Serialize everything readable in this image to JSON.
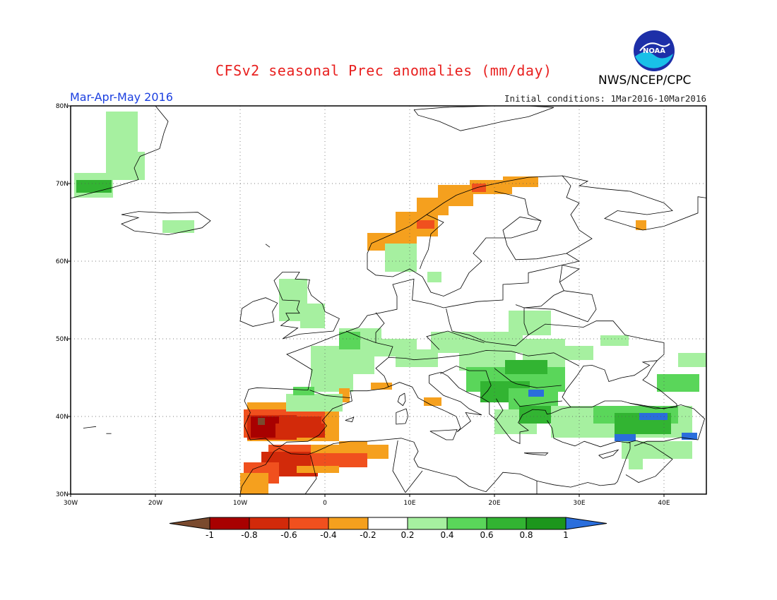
{
  "title": "CFSv2 seasonal Prec anomalies (mm/day)",
  "period": "Mar-Apr-May 2016",
  "initial_conditions": "Initial conditions: 1Mar2016-10Mar2016",
  "agency": "NWS/NCEP/CPC",
  "logo_text": "NOAA",
  "map": {
    "lon_range": [
      -30,
      45
    ],
    "lat_range": [
      30,
      80
    ],
    "lon_ticks": [
      "30W",
      "20W",
      "10W",
      "0",
      "10E",
      "20E",
      "30E",
      "40E"
    ],
    "lat_ticks": [
      "30N",
      "40N",
      "50N",
      "60N",
      "70N",
      "80N"
    ]
  },
  "colorbar": {
    "labels": [
      "-1",
      "-0.8",
      "-0.6",
      "-0.4",
      "-0.2",
      "0.2",
      "0.4",
      "0.6",
      "0.8",
      "1"
    ],
    "colors": [
      "#7a4a2e",
      "#a80000",
      "#d22a0a",
      "#f0501e",
      "#f5a01e",
      "#ffffff",
      "#a6f0a0",
      "#5ad65a",
      "#32b432",
      "#1c961c",
      "#2a6edc"
    ]
  },
  "colors": {
    "title": "#e8201f",
    "period": "#1b3fe0",
    "neg_1": "#a80000",
    "neg_08": "#d22a0a",
    "neg_06": "#f0501e",
    "neg_04": "#f5a01e",
    "pos_02": "#a6f0a0",
    "pos_04": "#5ad65a",
    "pos_06": "#32b432",
    "pos_08": "#1c961c",
    "pos_1": "#2a6edc",
    "below_min": "#7a4a2e"
  }
}
